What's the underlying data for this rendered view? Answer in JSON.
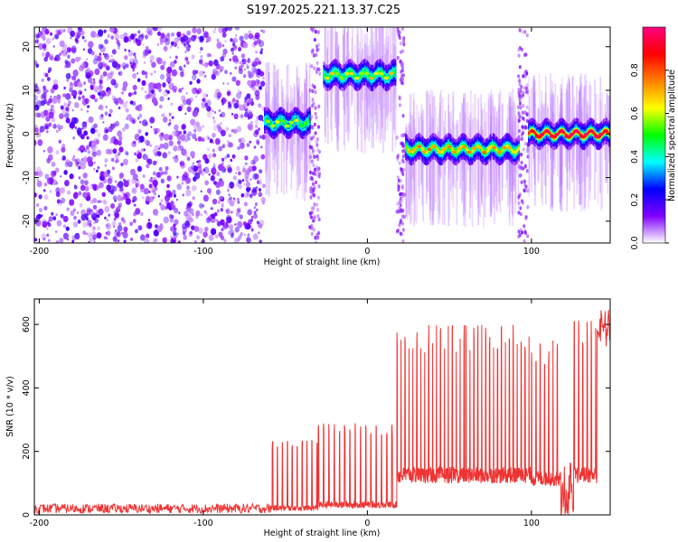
{
  "title": "S197.2025.221.13.37.C25",
  "chart_data": [
    {
      "type": "heatmap",
      "name": "spectrogram",
      "xlabel": "Height of straight line (km)",
      "ylabel": "Frequency (Hz)",
      "xlim": [
        -203,
        148
      ],
      "ylim": [
        -25,
        24.5
      ],
      "xticks": [
        -200,
        -100,
        0,
        100
      ],
      "yticks": [
        -20,
        -10,
        0,
        10,
        20
      ],
      "colorbar": {
        "label": "Normalized spectral amplitude",
        "range": [
          0,
          1
        ],
        "ticks": [
          0.0,
          0.2,
          0.4,
          0.6,
          0.8
        ],
        "colormap": [
          "#ffffff",
          "#8000ff",
          "#0000ff",
          "#00ffff",
          "#00ff00",
          "#ffff00",
          "#ff8000",
          "#ff0000",
          "#ff0080"
        ]
      },
      "segments": [
        {
          "x": [
            -203,
            -63
          ],
          "type": "noise",
          "amplitude": 0.15
        },
        {
          "x": [
            -63,
            -35
          ],
          "center_hz": 2.5,
          "amplitude": 0.45
        },
        {
          "x": [
            -35,
            -29
          ],
          "type": "edge-noise",
          "amplitude": 0.12
        },
        {
          "x": [
            -27,
            17
          ],
          "center_hz": 13.5,
          "amplitude": 0.5
        },
        {
          "x": [
            18,
            23
          ],
          "type": "edge-noise",
          "amplitude": 0.12
        },
        {
          "x": [
            23,
            92
          ],
          "center_hz": -3.5,
          "amplitude": 0.6
        },
        {
          "x": [
            92,
            98
          ],
          "type": "edge-noise",
          "amplitude": 0.12
        },
        {
          "x": [
            98,
            148
          ],
          "center_hz": 0,
          "amplitude": 0.85
        }
      ]
    },
    {
      "type": "line",
      "name": "snr",
      "xlabel": "Height of straight line (km)",
      "ylabel": "SNR (10 * v/v)",
      "xlim": [
        -203,
        148
      ],
      "ylim": [
        0,
        680
      ],
      "xticks": [
        -200,
        -100,
        0,
        100
      ],
      "yticks": [
        0,
        200,
        400,
        600
      ],
      "color": "#ee3333",
      "segments": [
        {
          "x": [
            -203,
            -58
          ],
          "low": 5,
          "high": 35,
          "style": "noise"
        },
        {
          "x": [
            -58,
            -30
          ],
          "low": 20,
          "high": 240,
          "period": 3.0,
          "style": "spikes"
        },
        {
          "x": [
            -30,
            18
          ],
          "low": 30,
          "high": 290,
          "period": 3.2,
          "style": "spikes"
        },
        {
          "x": [
            18,
            60
          ],
          "low": 120,
          "high": 600,
          "period": 2.4,
          "style": "spikes"
        },
        {
          "x": [
            60,
            100
          ],
          "low": 120,
          "high": 600,
          "period": 2.4,
          "style": "spikes"
        },
        {
          "x": [
            100,
            118
          ],
          "low": 110,
          "high": 550,
          "period": 2.6,
          "style": "spikes"
        },
        {
          "x": [
            118,
            126
          ],
          "low": 0,
          "high": 200,
          "style": "dip"
        },
        {
          "x": [
            126,
            140
          ],
          "low": 120,
          "high": 620,
          "period": 2.6,
          "style": "spikes"
        },
        {
          "x": [
            140,
            148
          ],
          "low": 520,
          "high": 650,
          "style": "noise"
        }
      ]
    }
  ]
}
